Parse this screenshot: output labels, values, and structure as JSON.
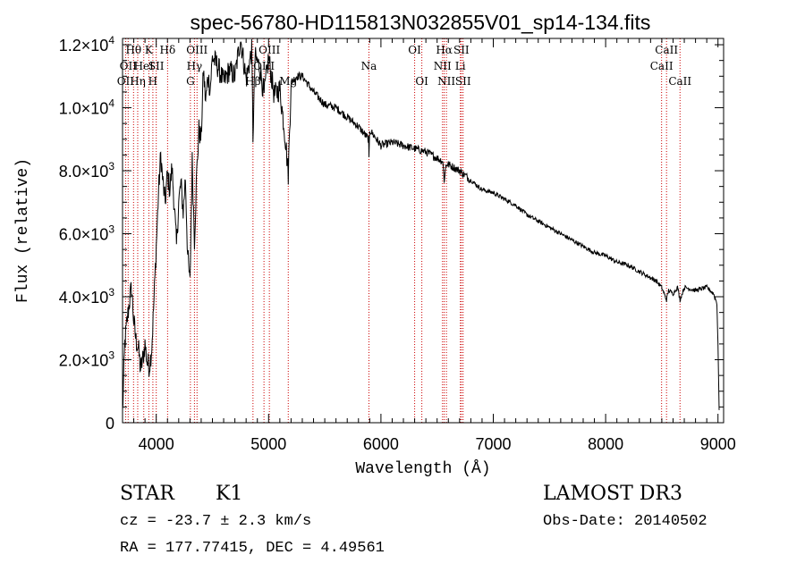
{
  "chart_data": {
    "type": "line",
    "title": "spec-56780-HD115813N032855V01_sp14-134.fits",
    "xlabel": "Wavelength (Å)",
    "ylabel": "Flux (relative)",
    "xlim": [
      3700,
      9050
    ],
    "ylim": [
      0,
      12200
    ],
    "x_ticks": [
      4000,
      5000,
      6000,
      7000,
      8000,
      9000
    ],
    "y_ticks": [
      {
        "value": 0,
        "mantissa": "0",
        "exp": ""
      },
      {
        "value": 2000,
        "mantissa": "2.0×10",
        "exp": "3"
      },
      {
        "value": 4000,
        "mantissa": "4.0×10",
        "exp": "3"
      },
      {
        "value": 6000,
        "mantissa": "6.0×10",
        "exp": "3"
      },
      {
        "value": 8000,
        "mantissa": "8.0×10",
        "exp": "3"
      },
      {
        "value": 10000,
        "mantissa": "1.0×10",
        "exp": "4"
      },
      {
        "value": 12000,
        "mantissa": "1.2×10",
        "exp": "4"
      }
    ],
    "series": [
      {
        "name": "spectrum",
        "x": [
          3700,
          3720,
          3740,
          3760,
          3780,
          3800,
          3820,
          3840,
          3860,
          3880,
          3900,
          3920,
          3940,
          3960,
          3980,
          4000,
          4020,
          4040,
          4060,
          4080,
          4100,
          4120,
          4140,
          4160,
          4180,
          4200,
          4220,
          4240,
          4260,
          4280,
          4300,
          4320,
          4340,
          4360,
          4380,
          4400,
          4420,
          4440,
          4460,
          4480,
          4500,
          4550,
          4600,
          4650,
          4700,
          4750,
          4800,
          4850,
          4861,
          4880,
          4920,
          4960,
          5000,
          5050,
          5100,
          5150,
          5175,
          5200,
          5250,
          5300,
          5400,
          5500,
          5600,
          5700,
          5800,
          5890,
          5893,
          5900,
          6000,
          6100,
          6200,
          6300,
          6400,
          6500,
          6550,
          6563,
          6580,
          6600,
          6700,
          6800,
          6900,
          7000,
          7100,
          7200,
          7300,
          7400,
          7500,
          7600,
          7700,
          7800,
          7900,
          8000,
          8100,
          8200,
          8300,
          8400,
          8450,
          8498,
          8520,
          8542,
          8560,
          8600,
          8640,
          8662,
          8700,
          8800,
          8900,
          8960,
          8990,
          9000,
          9010
        ],
        "y": [
          300,
          2500,
          3200,
          3800,
          4300,
          3200,
          2600,
          2400,
          1700,
          2000,
          2500,
          1900,
          1800,
          2400,
          3900,
          5600,
          7300,
          8500,
          7600,
          7000,
          7900,
          7400,
          8100,
          6900,
          5600,
          7000,
          7600,
          6700,
          7800,
          5300,
          4400,
          8300,
          5800,
          7900,
          9300,
          9000,
          11200,
          10200,
          11000,
          10600,
          11600,
          11300,
          10800,
          11200,
          11000,
          12200,
          10900,
          11800,
          9100,
          11600,
          11300,
          10400,
          11600,
          10400,
          10600,
          9000,
          7900,
          10800,
          11000,
          11000,
          10500,
          10100,
          10000,
          9700,
          9400,
          9000,
          8300,
          9300,
          8800,
          8900,
          8800,
          8700,
          8600,
          8400,
          8300,
          7700,
          8200,
          8200,
          8000,
          7700,
          7400,
          7300,
          7100,
          6900,
          6600,
          6400,
          6200,
          6000,
          5800,
          5600,
          5400,
          5300,
          5100,
          5000,
          4800,
          4600,
          4500,
          4300,
          4100,
          3900,
          4200,
          4100,
          4300,
          3900,
          4300,
          4200,
          4300,
          4100,
          3800,
          2500,
          400
        ]
      }
    ],
    "lines": [
      {
        "w": 3727,
        "label": "OII",
        "row": 2
      },
      {
        "w": 3750,
        "label": "OII",
        "row": 1
      },
      {
        "w": 3798,
        "label": "Hθ",
        "row": 0
      },
      {
        "w": 3835,
        "label": "Hη",
        "row": 2
      },
      {
        "w": 3889,
        "label": "HeI",
        "row": 1
      },
      {
        "w": 3934,
        "label": "K",
        "row": 0
      },
      {
        "w": 3970,
        "label": "H",
        "row": 2
      },
      {
        "w": 4000,
        "label": "SII",
        "row": 1
      },
      {
        "w": 4101,
        "label": "Hδ",
        "row": 0
      },
      {
        "w": 4304,
        "label": "G",
        "row": 2
      },
      {
        "w": 4340,
        "label": "Hγ",
        "row": 1
      },
      {
        "w": 4363,
        "label": "OIII",
        "row": 0
      },
      {
        "w": 4861,
        "label": "Hβ",
        "row": 2
      },
      {
        "w": 4959,
        "label": "OIII",
        "row": 1
      },
      {
        "w": 5007,
        "label": "OIII",
        "row": 0
      },
      {
        "w": 5175,
        "label": "Mg",
        "row": 2
      },
      {
        "w": 5893,
        "label": "Na",
        "row": 1
      },
      {
        "w": 6300,
        "label": "OI",
        "row": 0
      },
      {
        "w": 6364,
        "label": "OI",
        "row": 2
      },
      {
        "w": 6548,
        "label": "NII",
        "row": 1
      },
      {
        "w": 6563,
        "label": "Hα",
        "row": 0
      },
      {
        "w": 6583,
        "label": "NII",
        "row": 2
      },
      {
        "w": 6707,
        "label": "Li",
        "row": 1
      },
      {
        "w": 6716,
        "label": "SII",
        "row": 0
      },
      {
        "w": 6731,
        "label": "SII",
        "row": 2
      },
      {
        "w": 8498,
        "label": "CaII",
        "row": 1
      },
      {
        "w": 8542,
        "label": "CaII",
        "row": 0
      },
      {
        "w": 8662,
        "label": "CaII",
        "row": 2
      }
    ]
  },
  "info": {
    "class_label": "STAR",
    "subclass": "K1",
    "survey": "LAMOST DR3",
    "cz": "cz = -23.7 ± 2.3 km/s",
    "obs_date": "Obs-Date: 20140502",
    "coords": "RA = 177.77415, DEC =   4.49561"
  },
  "colors": {
    "line_marker": "#cc0000",
    "spectrum": "#000000"
  }
}
